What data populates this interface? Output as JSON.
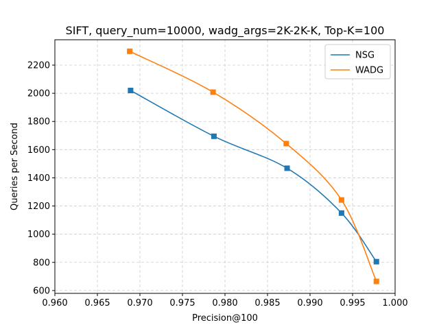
{
  "chart_data": {
    "type": "line",
    "title": "SIFT, query_num=10000, wadg_args=2K-2K-K, Top-K=100",
    "xlabel": "Precision@100",
    "ylabel": "Queries per Second",
    "xlim": [
      0.96,
      1.0
    ],
    "ylim": [
      580,
      2380
    ],
    "xticks": [
      0.96,
      0.965,
      0.97,
      0.975,
      0.98,
      0.985,
      0.99,
      0.995,
      1.0
    ],
    "xtick_labels": [
      "0.960",
      "0.965",
      "0.970",
      "0.975",
      "0.980",
      "0.985",
      "0.990",
      "0.995",
      "1.000"
    ],
    "yticks": [
      600,
      800,
      1000,
      1200,
      1400,
      1600,
      1800,
      2000,
      2200
    ],
    "ytick_labels": [
      "600",
      "800",
      "1000",
      "1200",
      "1400",
      "1600",
      "1800",
      "2000",
      "2200"
    ],
    "grid": true,
    "legend_position": "top-right",
    "series": [
      {
        "name": "NSG",
        "color": "#1f77b4",
        "marker": "square",
        "x": [
          0.9689,
          0.9787,
          0.9873,
          0.9937,
          0.9978
        ],
        "y": [
          2020,
          1695,
          1468,
          1150,
          805
        ]
      },
      {
        "name": "WADG",
        "color": "#ff7f0e",
        "marker": "square",
        "x": [
          0.9688,
          0.9786,
          0.9872,
          0.9937,
          0.9978
        ],
        "y": [
          2298,
          2008,
          1643,
          1243,
          665
        ]
      }
    ]
  }
}
